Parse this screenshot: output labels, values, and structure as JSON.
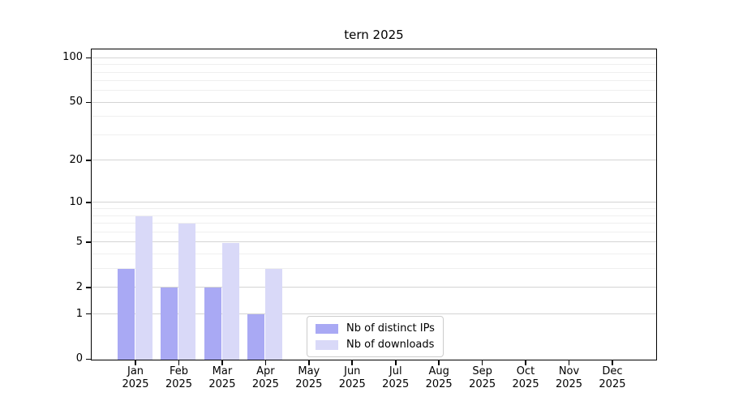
{
  "figure": {
    "title": "tern 2025",
    "background": "#ffffff"
  },
  "chart_data": {
    "type": "bar",
    "title": "tern 2025",
    "categories": [
      "Jan",
      "Feb",
      "Mar",
      "Apr",
      "May",
      "Jun",
      "Jul",
      "Aug",
      "Sep",
      "Oct",
      "Nov",
      "Dec"
    ],
    "year_label": "2025",
    "series": [
      {
        "name": "Nb of distinct IPs",
        "color": "#a9a9f4",
        "values": [
          3,
          2,
          2,
          1,
          0,
          0,
          0,
          0,
          0,
          0,
          0,
          0
        ]
      },
      {
        "name": "Nb of downloads",
        "color": "#d9d9f8",
        "values": [
          8,
          7,
          5,
          3,
          0,
          0,
          0,
          0,
          0,
          0,
          0,
          0
        ]
      }
    ],
    "yscale": "log1p",
    "ylim": [
      0,
      113
    ],
    "y_major_ticks": [
      0,
      1,
      2,
      5,
      10,
      20,
      50,
      100
    ],
    "y_minor_gridlines": [
      3,
      4,
      6,
      7,
      8,
      9,
      30,
      40,
      60,
      70,
      80,
      90
    ],
    "grid": "horizontal",
    "legend_position": "lower-center",
    "xlabel": "",
    "ylabel": ""
  },
  "colors": {
    "major_grid": "#d4d4d4",
    "minor_grid": "#efefef",
    "axis": "#000000",
    "legend_border": "#cccccc"
  }
}
